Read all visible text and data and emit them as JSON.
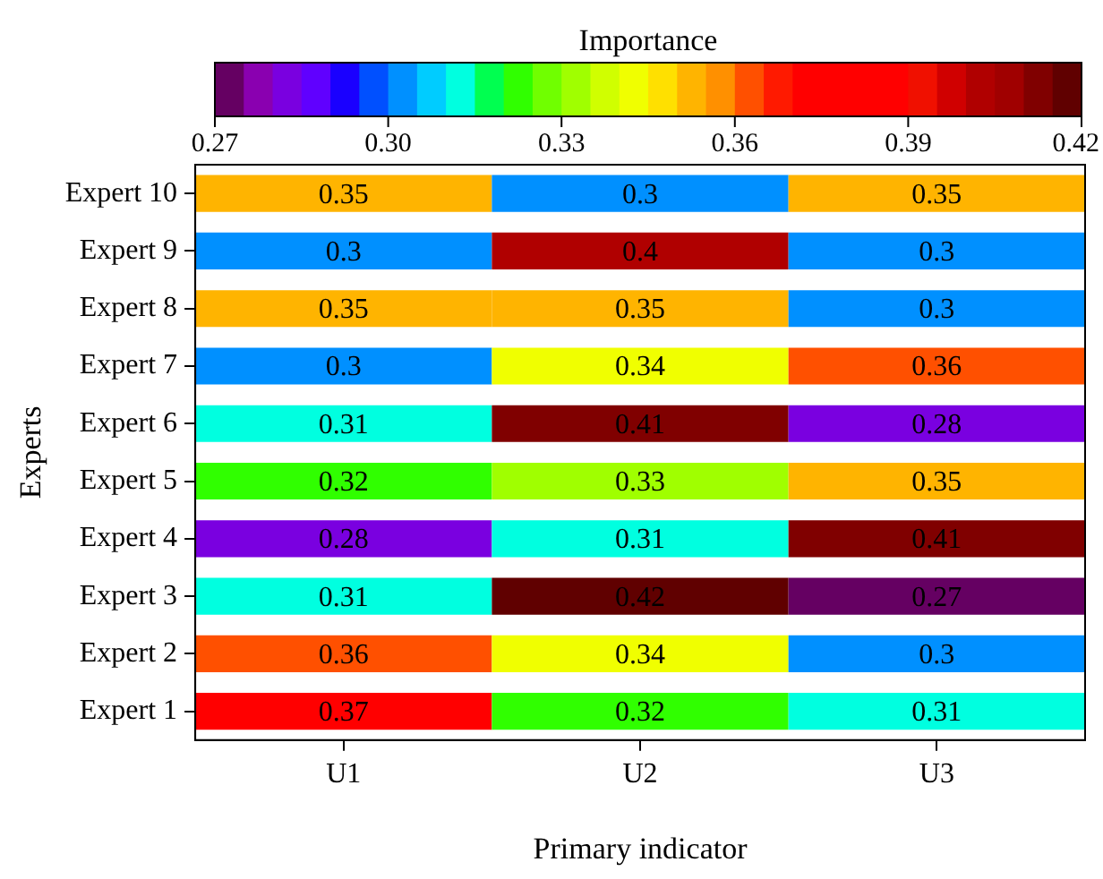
{
  "chart_data": {
    "type": "heatmap",
    "xlabel": "Primary indicator",
    "ylabel": "Experts",
    "clabel": "Importance",
    "categories": [
      "U1",
      "U2",
      "U3"
    ],
    "y_categories": [
      "Expert 10",
      "Expert 9",
      "Expert 8",
      "Expert 7",
      "Expert 6",
      "Expert 5",
      "Expert 4",
      "Expert 3",
      "Expert 2",
      "Expert 1"
    ],
    "cells": [
      [
        0.35,
        0.3,
        0.35
      ],
      [
        0.3,
        0.4,
        0.3
      ],
      [
        0.35,
        0.35,
        0.3
      ],
      [
        0.3,
        0.34,
        0.36
      ],
      [
        0.31,
        0.41,
        0.28
      ],
      [
        0.32,
        0.33,
        0.35
      ],
      [
        0.28,
        0.31,
        0.41
      ],
      [
        0.31,
        0.42,
        0.27
      ],
      [
        0.36,
        0.34,
        0.3
      ],
      [
        0.37,
        0.32,
        0.31
      ]
    ],
    "clim": [
      0.27,
      0.42
    ],
    "cticks": [
      {
        "value": 0.27,
        "label": "0.27"
      },
      {
        "value": 0.3,
        "label": "0.30"
      },
      {
        "value": 0.33,
        "label": "0.33"
      },
      {
        "value": 0.36,
        "label": "0.36"
      },
      {
        "value": 0.39,
        "label": "0.39"
      },
      {
        "value": 0.42,
        "label": "0.42"
      }
    ],
    "data_labels": true,
    "grid": false,
    "legend": false
  }
}
